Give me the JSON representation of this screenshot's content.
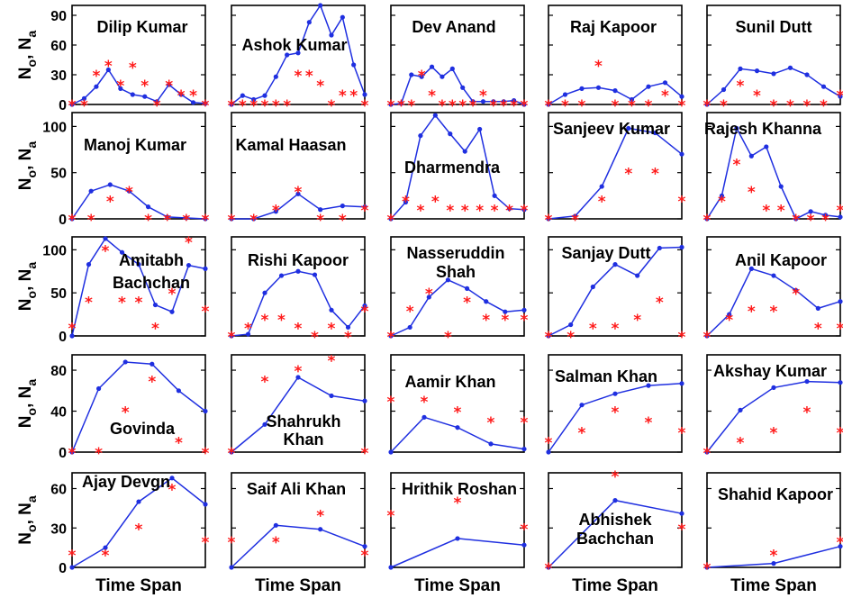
{
  "figure": {
    "colors": {
      "line": "#1f2fe0",
      "marker": "#1f2fe0",
      "star": "#ff1a1a",
      "frame": "#000000"
    },
    "ylabel_text": "o, N",
    "ylabel_prefix": "N",
    "ylabel_sub1": "o",
    "ylabel_sub2": "a",
    "ylabel_sep": ", ",
    "xlabel": "Time Span"
  },
  "chart_data": [
    {
      "type": "line",
      "title": [
        "Dilip Kumar"
      ],
      "ylim": [
        0,
        100
      ],
      "yticks": [
        0,
        30,
        60,
        90
      ],
      "series": [
        {
          "values": [
            0,
            6,
            18,
            35,
            16,
            10,
            8,
            3,
            20,
            10,
            2,
            1
          ]
        },
        {
          "values": [
            0,
            0,
            30,
            40,
            20,
            38,
            20,
            0,
            20,
            10,
            10,
            0
          ],
          "marker": "star"
        }
      ]
    },
    {
      "type": "line",
      "title": [
        "Ashok Kumar"
      ],
      "ylim": [
        0,
        100
      ],
      "yticks": [
        0,
        30,
        60,
        90
      ],
      "series": [
        {
          "values": [
            0,
            9,
            5,
            9,
            28,
            50,
            52,
            83,
            100,
            70,
            88,
            40,
            10
          ]
        },
        {
          "values": [
            0,
            0,
            0,
            0,
            0,
            0,
            30,
            30,
            20,
            0,
            10,
            10,
            0
          ],
          "marker": "star"
        }
      ]
    },
    {
      "type": "line",
      "title": [
        "Dev Anand"
      ],
      "ylim": [
        0,
        100
      ],
      "yticks": [
        0,
        30,
        60,
        90
      ],
      "series": [
        {
          "values": [
            0,
            1,
            30,
            28,
            38,
            28,
            36,
            17,
            3,
            3,
            3,
            3,
            4,
            0
          ]
        },
        {
          "values": [
            0,
            0,
            0,
            30,
            10,
            0,
            0,
            0,
            0,
            10,
            0,
            0,
            0,
            0
          ],
          "marker": "star"
        }
      ]
    },
    {
      "type": "line",
      "title": [
        "Raj Kapoor"
      ],
      "ylim": [
        0,
        100
      ],
      "yticks": [
        0,
        30,
        60,
        90
      ],
      "series": [
        {
          "values": [
            0,
            10,
            16,
            17,
            14,
            5,
            18,
            22,
            8
          ]
        },
        {
          "values": [
            0,
            0,
            0,
            40,
            0,
            0,
            0,
            10,
            0
          ],
          "marker": "star"
        }
      ]
    },
    {
      "type": "line",
      "title": [
        "Sunil Dutt"
      ],
      "ylim": [
        0,
        100
      ],
      "yticks": [
        0,
        30,
        60,
        90
      ],
      "series": [
        {
          "values": [
            0,
            15,
            36,
            34,
            31,
            37,
            30,
            18,
            8
          ]
        },
        {
          "values": [
            0,
            0,
            20,
            10,
            0,
            0,
            0,
            0,
            10
          ],
          "marker": "star"
        }
      ]
    },
    {
      "type": "line",
      "title": [
        "Manoj Kumar"
      ],
      "ylim": [
        0,
        115
      ],
      "yticks": [
        0,
        50,
        100
      ],
      "series": [
        {
          "values": [
            0,
            30,
            37,
            30,
            13,
            2,
            1,
            0
          ]
        },
        {
          "values": [
            0,
            0,
            20,
            30,
            0,
            0,
            0,
            0
          ],
          "marker": "star"
        }
      ]
    },
    {
      "type": "line",
      "title": [
        "Kamal Haasan"
      ],
      "ylim": [
        0,
        115
      ],
      "yticks": [
        0,
        50,
        100
      ],
      "series": [
        {
          "values": [
            0,
            0,
            8,
            27,
            10,
            14,
            13
          ]
        },
        {
          "values": [
            0,
            0,
            10,
            30,
            0,
            0,
            10
          ],
          "marker": "star"
        }
      ]
    },
    {
      "type": "line",
      "title": [
        "Dharmendra"
      ],
      "ylim": [
        0,
        115
      ],
      "yticks": [
        0,
        50,
        100
      ],
      "series": [
        {
          "values": [
            0,
            18,
            90,
            112,
            92,
            73,
            97,
            25,
            11,
            10
          ]
        },
        {
          "values": [
            0,
            20,
            10,
            20,
            10,
            10,
            10,
            10,
            10,
            10
          ],
          "marker": "star"
        }
      ]
    },
    {
      "type": "line",
      "title": [
        "Sanjeev Kumar"
      ],
      "ylim": [
        0,
        115
      ],
      "yticks": [
        0,
        50,
        100
      ],
      "series": [
        {
          "values": [
            0,
            3,
            35,
            98,
            93,
            70
          ]
        },
        {
          "values": [
            0,
            0,
            20,
            50,
            50,
            20
          ],
          "marker": "star"
        }
      ]
    },
    {
      "type": "line",
      "title": [
        "Rajesh Khanna"
      ],
      "ylim": [
        0,
        115
      ],
      "yticks": [
        0,
        50,
        100
      ],
      "series": [
        {
          "values": [
            0,
            25,
            98,
            68,
            78,
            35,
            0,
            8,
            4,
            2
          ]
        },
        {
          "values": [
            0,
            20,
            60,
            30,
            10,
            10,
            0,
            0,
            0,
            10
          ],
          "marker": "star"
        }
      ]
    },
    {
      "type": "line",
      "title": [
        "Amitabh",
        "Bachchan"
      ],
      "ylim": [
        0,
        115
      ],
      "yticks": [
        0,
        50,
        100
      ],
      "series": [
        {
          "values": [
            0,
            83,
            113,
            97,
            83,
            36,
            28,
            82,
            78
          ]
        },
        {
          "values": [
            10,
            40,
            100,
            40,
            40,
            10,
            50,
            110,
            30
          ],
          "marker": "star"
        }
      ]
    },
    {
      "type": "line",
      "title": [
        "Rishi Kapoor"
      ],
      "ylim": [
        0,
        115
      ],
      "yticks": [
        0,
        50,
        100
      ],
      "series": [
        {
          "values": [
            0,
            2,
            50,
            70,
            75,
            71,
            30,
            10,
            35
          ]
        },
        {
          "values": [
            0,
            10,
            20,
            20,
            10,
            0,
            10,
            0,
            30
          ],
          "marker": "star"
        }
      ]
    },
    {
      "type": "line",
      "title": [
        "Nasseruddin",
        "Shah"
      ],
      "ylim": [
        0,
        115
      ],
      "yticks": [
        0,
        50,
        100
      ],
      "series": [
        {
          "values": [
            0,
            10,
            45,
            65,
            55,
            40,
            28,
            30
          ]
        },
        {
          "values": [
            0,
            30,
            50,
            0,
            40,
            20,
            20,
            20
          ],
          "marker": "star"
        }
      ]
    },
    {
      "type": "line",
      "title": [
        "Sanjay Dutt"
      ],
      "ylim": [
        0,
        115
      ],
      "yticks": [
        0,
        50,
        100
      ],
      "series": [
        {
          "values": [
            0,
            13,
            57,
            83,
            70,
            102,
            103
          ]
        },
        {
          "values": [
            0,
            0,
            10,
            10,
            20,
            40,
            0
          ],
          "marker": "star"
        }
      ]
    },
    {
      "type": "line",
      "title": [
        "Anil Kapoor"
      ],
      "ylim": [
        0,
        115
      ],
      "yticks": [
        0,
        50,
        100
      ],
      "series": [
        {
          "values": [
            0,
            25,
            78,
            70,
            53,
            32,
            40
          ]
        },
        {
          "values": [
            0,
            20,
            30,
            30,
            50,
            10,
            10
          ],
          "marker": "star"
        }
      ]
    },
    {
      "type": "line",
      "title": [
        "Govinda"
      ],
      "ylim": [
        0,
        95
      ],
      "yticks": [
        0,
        40,
        80
      ],
      "series": [
        {
          "values": [
            0,
            62,
            88,
            86,
            60,
            40
          ]
        },
        {
          "values": [
            0,
            0,
            40,
            70,
            10,
            0
          ],
          "marker": "star"
        }
      ]
    },
    {
      "type": "line",
      "title": [
        "Shahrukh",
        "Khan"
      ],
      "ylim": [
        0,
        95
      ],
      "yticks": [
        0,
        40,
        80
      ],
      "series": [
        {
          "values": [
            0,
            27,
            73,
            55,
            50
          ]
        },
        {
          "values": [
            0,
            70,
            80,
            90,
            0
          ],
          "marker": "star"
        }
      ]
    },
    {
      "type": "line",
      "title": [
        "Aamir Khan"
      ],
      "ylim": [
        0,
        95
      ],
      "yticks": [
        0,
        40,
        80
      ],
      "series": [
        {
          "values": [
            0,
            34,
            24,
            8,
            3
          ]
        },
        {
          "values": [
            50,
            50,
            40,
            30,
            30
          ],
          "marker": "star"
        }
      ]
    },
    {
      "type": "line",
      "title": [
        "Salman Khan"
      ],
      "ylim": [
        0,
        95
      ],
      "yticks": [
        0,
        40,
        80
      ],
      "series": [
        {
          "values": [
            0,
            46,
            57,
            65,
            67
          ]
        },
        {
          "values": [
            10,
            20,
            40,
            30,
            20
          ],
          "marker": "star"
        }
      ]
    },
    {
      "type": "line",
      "title": [
        "Akshay Kumar"
      ],
      "ylim": [
        0,
        95
      ],
      "yticks": [
        0,
        40,
        80
      ],
      "series": [
        {
          "values": [
            0,
            41,
            63,
            69,
            68
          ]
        },
        {
          "values": [
            0,
            10,
            20,
            40,
            20
          ],
          "marker": "star"
        }
      ]
    },
    {
      "type": "line",
      "title": [
        "Ajay Devgn"
      ],
      "ylim": [
        0,
        72
      ],
      "yticks": [
        0,
        30,
        60
      ],
      "series": [
        {
          "values": [
            0,
            15,
            50,
            68,
            48
          ]
        },
        {
          "values": [
            10,
            10,
            30,
            60,
            20
          ],
          "marker": "star"
        }
      ]
    },
    {
      "type": "line",
      "title": [
        "Saif Ali Khan"
      ],
      "ylim": [
        0,
        72
      ],
      "yticks": [
        0,
        30,
        60
      ],
      "series": [
        {
          "values": [
            0,
            32,
            29,
            16
          ]
        },
        {
          "values": [
            20,
            20,
            40,
            10
          ],
          "marker": "star"
        }
      ]
    },
    {
      "type": "line",
      "title": [
        "Hrithik Roshan"
      ],
      "ylim": [
        0,
        72
      ],
      "yticks": [
        0,
        30,
        60
      ],
      "series": [
        {
          "values": [
            0,
            22,
            17
          ]
        },
        {
          "values": [
            40,
            50,
            30
          ],
          "marker": "star"
        }
      ]
    },
    {
      "type": "line",
      "title": [
        "Abhishek",
        "Bachchan"
      ],
      "ylim": [
        0,
        72
      ],
      "yticks": [
        0,
        30,
        60
      ],
      "series": [
        {
          "values": [
            0,
            51,
            41
          ]
        },
        {
          "values": [
            0,
            70,
            30
          ],
          "marker": "star"
        }
      ]
    },
    {
      "type": "line",
      "title": [
        "Shahid Kapoor"
      ],
      "ylim": [
        0,
        72
      ],
      "yticks": [
        0,
        30,
        60
      ],
      "series": [
        {
          "values": [
            0,
            3,
            16
          ]
        },
        {
          "values": [
            0,
            10,
            20
          ],
          "marker": "star"
        }
      ]
    }
  ]
}
